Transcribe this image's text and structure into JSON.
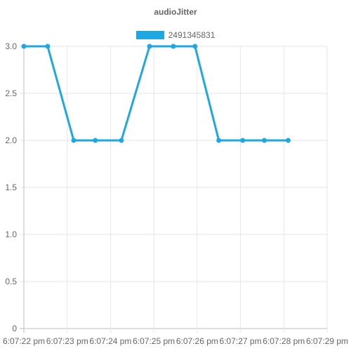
{
  "chart_data": {
    "type": "line",
    "title": "audioJitter",
    "xlabel": "",
    "ylabel": "",
    "x_ticks": [
      "6:07:22 pm",
      "6:07:23 pm",
      "6:07:24 pm",
      "6:07:25 pm",
      "6:07:26 pm",
      "6:07:27 pm",
      "6:07:28 pm",
      "6:07:29 pm"
    ],
    "y_ticks": [
      "3.0",
      "2.5",
      "2.0",
      "1.5",
      "1.0",
      "0.5",
      "0"
    ],
    "ylim": [
      0,
      3
    ],
    "legend_position": "top",
    "grid": true,
    "series": [
      {
        "name": "2491345831",
        "color": "#1ea7e1",
        "points": [
          {
            "x": "6:07:22.0 pm",
            "y": 3
          },
          {
            "x": "6:07:22.55 pm",
            "y": 3
          },
          {
            "x": "6:07:23.15 pm",
            "y": 2
          },
          {
            "x": "6:07:23.65 pm",
            "y": 2
          },
          {
            "x": "6:07:24.25 pm",
            "y": 2
          },
          {
            "x": "6:07:24.9 pm",
            "y": 3
          },
          {
            "x": "6:07:25.45 pm",
            "y": 3
          },
          {
            "x": "6:07:25.95 pm",
            "y": 3
          },
          {
            "x": "6:07:26.5 pm",
            "y": 2
          },
          {
            "x": "6:07:27.05 pm",
            "y": 2
          },
          {
            "x": "6:07:27.55 pm",
            "y": 2
          },
          {
            "x": "6:07:28.1 pm",
            "y": 2
          }
        ]
      }
    ]
  }
}
